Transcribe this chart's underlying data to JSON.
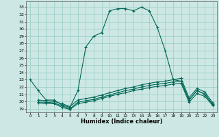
{
  "xlabel": "Humidex (Indice chaleur)",
  "bg_color": "#cde8e4",
  "grid_color": "#9ecfca",
  "line_color": "#006655",
  "xlim": [
    -0.5,
    23.5
  ],
  "ylim": [
    18.5,
    33.8
  ],
  "yticks": [
    19,
    20,
    21,
    22,
    23,
    24,
    25,
    26,
    27,
    28,
    29,
    30,
    31,
    32,
    33
  ],
  "xticks": [
    0,
    1,
    2,
    3,
    4,
    5,
    6,
    7,
    8,
    9,
    10,
    11,
    12,
    13,
    14,
    15,
    16,
    17,
    18,
    19,
    20,
    21,
    22,
    23
  ],
  "line1_x": [
    0,
    1,
    2,
    3,
    4,
    5,
    6,
    7,
    8,
    9,
    10,
    11,
    12,
    13,
    14,
    15,
    16,
    17,
    18,
    19,
    20,
    21,
    22,
    23
  ],
  "line1_y": [
    23,
    21.5,
    20.2,
    20.2,
    19.5,
    19.2,
    21.5,
    27.5,
    29.0,
    29.5,
    32.5,
    32.8,
    32.8,
    32.5,
    33.0,
    32.5,
    30.2,
    27.0,
    23.0,
    22.8,
    20.2,
    21.5,
    21.0,
    19.5
  ],
  "line2_x": [
    1,
    2,
    3,
    4,
    5,
    6,
    7,
    8,
    9,
    10,
    11,
    12,
    13,
    14,
    15,
    16,
    17,
    18,
    19,
    20,
    21,
    22,
    23
  ],
  "line2_y": [
    20.2,
    20.1,
    20.0,
    19.7,
    19.3,
    20.2,
    20.4,
    20.6,
    20.9,
    21.2,
    21.5,
    21.8,
    22.0,
    22.3,
    22.5,
    22.7,
    22.8,
    23.0,
    23.2,
    20.5,
    21.8,
    21.3,
    19.8
  ],
  "line3_x": [
    1,
    2,
    3,
    4,
    5,
    6,
    7,
    8,
    9,
    10,
    11,
    12,
    13,
    14,
    15,
    16,
    17,
    18,
    19,
    20,
    21,
    22,
    23
  ],
  "line3_y": [
    19.9,
    19.9,
    19.8,
    19.4,
    19.0,
    19.9,
    20.1,
    20.3,
    20.6,
    20.9,
    21.2,
    21.5,
    21.7,
    22.0,
    22.2,
    22.4,
    22.5,
    22.7,
    22.8,
    20.2,
    21.5,
    21.0,
    19.6
  ],
  "line4_x": [
    1,
    2,
    3,
    4,
    5,
    6,
    7,
    8,
    9,
    10,
    11,
    12,
    13,
    14,
    15,
    16,
    17,
    18,
    19,
    20,
    21,
    22,
    23
  ],
  "line4_y": [
    19.8,
    19.7,
    19.7,
    19.2,
    18.9,
    19.7,
    19.9,
    20.1,
    20.4,
    20.7,
    21.0,
    21.2,
    21.5,
    21.7,
    21.9,
    22.1,
    22.2,
    22.4,
    22.5,
    19.9,
    21.1,
    20.7,
    19.4
  ]
}
